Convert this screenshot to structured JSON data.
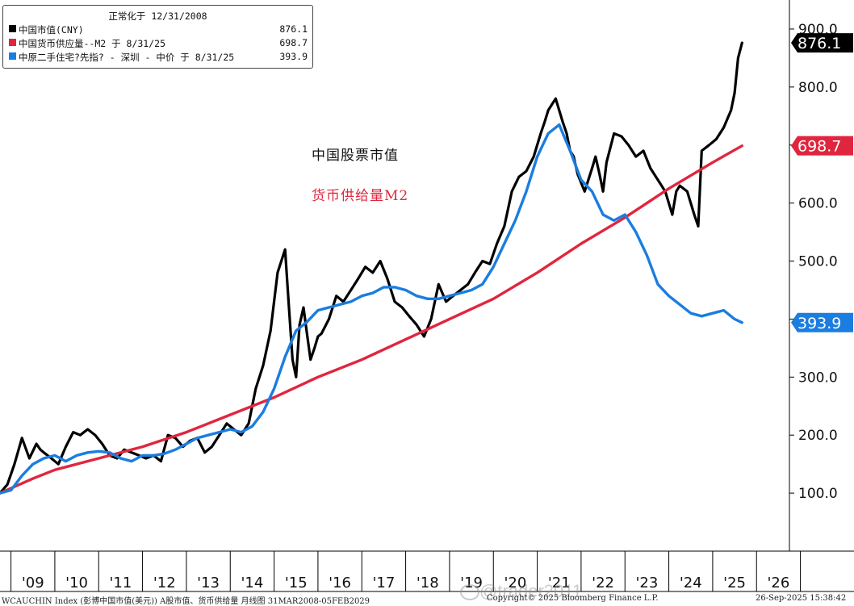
{
  "legend": {
    "title": "正常化于 12/31/2008",
    "items": [
      {
        "label": "中国市值(CNY)",
        "value": "876.1",
        "color": "#000000"
      },
      {
        "label": "中国货币供应量--M2 于 8/31/25",
        "value": "698.7",
        "color": "#e0263e"
      },
      {
        "label": "中原二手住宅?先指? - 深圳 - 中价 于 8/31/25",
        "value": "393.9",
        "color": "#1a7de0"
      }
    ]
  },
  "annotations": {
    "stocks": "中国股票市值",
    "m2": "货币供给量M2"
  },
  "footer": {
    "left": "WCAUCHIN Index (彭博中国市值(美元)) A股市值、货币供给量  月线图 31MAR2008-05FEB2029",
    "center": "Copyright© 2025 Bloomberg Finance L.P.",
    "right": "26-Sep-2025 15:38:42"
  },
  "watermark": "@trader2011",
  "chart_data": {
    "type": "line",
    "title": "",
    "xlabel": "",
    "ylabel": "",
    "xlim": [
      2008.75,
      2026.75
    ],
    "ylim": [
      0,
      950
    ],
    "yticks": [
      100,
      200,
      300,
      400,
      500,
      600,
      700,
      800,
      900
    ],
    "ytick_labels": [
      "100.0",
      "200.0",
      "300.0",
      "400.0",
      "500.0",
      "600.0",
      "700.0",
      "800.0",
      "900.0"
    ],
    "xticks": [
      2009,
      2010,
      2011,
      2012,
      2013,
      2014,
      2015,
      2016,
      2017,
      2018,
      2019,
      2020,
      2021,
      2022,
      2023,
      2024,
      2025,
      2026
    ],
    "xtick_labels": [
      "'09",
      "'10",
      "'11",
      "'12",
      "'13",
      "'14",
      "'15",
      "'16",
      "'17",
      "'18",
      "'19",
      "'20",
      "'21",
      "'22",
      "'23",
      "'24",
      "'25",
      "'26"
    ],
    "series": [
      {
        "name": "中国市值(CNY)",
        "color": "#000000",
        "end_label": "876.1",
        "x": [
          2008.75,
          2008.92,
          2009.08,
          2009.25,
          2009.42,
          2009.58,
          2009.67,
          2009.75,
          2009.92,
          2010.08,
          2010.25,
          2010.42,
          2010.58,
          2010.75,
          2010.92,
          2011.08,
          2011.25,
          2011.42,
          2011.58,
          2011.75,
          2011.92,
          2012.08,
          2012.25,
          2012.42,
          2012.58,
          2012.75,
          2012.92,
          2013.08,
          2013.25,
          2013.42,
          2013.58,
          2013.75,
          2013.92,
          2014.08,
          2014.25,
          2014.42,
          2014.58,
          2014.75,
          2014.92,
          2015.08,
          2015.25,
          2015.33,
          2015.42,
          2015.5,
          2015.58,
          2015.67,
          2015.75,
          2015.83,
          2015.92,
          2016.0,
          2016.08,
          2016.25,
          2016.42,
          2016.58,
          2016.75,
          2016.92,
          2017.08,
          2017.25,
          2017.42,
          2017.58,
          2017.75,
          2017.92,
          2018.08,
          2018.25,
          2018.42,
          2018.58,
          2018.75,
          2018.92,
          2019.08,
          2019.25,
          2019.42,
          2019.58,
          2019.75,
          2019.92,
          2020.08,
          2020.25,
          2020.42,
          2020.58,
          2020.75,
          2020.92,
          2021.08,
          2021.17,
          2021.25,
          2021.42,
          2021.58,
          2021.67,
          2021.75,
          2021.83,
          2021.92,
          2022.08,
          2022.25,
          2022.33,
          2022.42,
          2022.5,
          2022.58,
          2022.75,
          2022.92,
          2023.08,
          2023.25,
          2023.42,
          2023.58,
          2023.75,
          2023.92,
          2024.08,
          2024.17,
          2024.25,
          2024.42,
          2024.58,
          2024.67,
          2024.75,
          2024.92,
          2025.08,
          2025.25,
          2025.42,
          2025.5,
          2025.58,
          2025.67
        ],
        "y": [
          100,
          115,
          150,
          195,
          160,
          185,
          175,
          170,
          160,
          150,
          180,
          205,
          200,
          210,
          200,
          185,
          165,
          160,
          175,
          170,
          165,
          160,
          165,
          155,
          200,
          195,
          180,
          190,
          195,
          170,
          180,
          200,
          220,
          210,
          200,
          220,
          280,
          320,
          380,
          480,
          520,
          430,
          330,
          300,
          390,
          420,
          375,
          330,
          350,
          370,
          375,
          400,
          440,
          430,
          450,
          470,
          490,
          480,
          500,
          470,
          430,
          420,
          405,
          390,
          370,
          400,
          460,
          430,
          440,
          450,
          460,
          480,
          500,
          495,
          530,
          560,
          620,
          645,
          655,
          680,
          720,
          740,
          760,
          780,
          740,
          720,
          690,
          680,
          650,
          620,
          660,
          680,
          650,
          620,
          670,
          720,
          715,
          700,
          680,
          690,
          660,
          640,
          620,
          580,
          620,
          630,
          620,
          580,
          560,
          690,
          700,
          710,
          730,
          760,
          790,
          850,
          876.1
        ]
      },
      {
        "name": "中国货币供应量--M2 于 8/31/25",
        "color": "#e0263e",
        "end_label": "698.7",
        "x": [
          2008.75,
          2009.5,
          2010,
          2011,
          2012,
          2013,
          2014,
          2015,
          2016,
          2017,
          2018,
          2019,
          2020,
          2021,
          2022,
          2023,
          2024,
          2025,
          2025.67
        ],
        "y": [
          100,
          125,
          140,
          160,
          180,
          205,
          235,
          265,
          300,
          330,
          365,
          400,
          435,
          480,
          530,
          575,
          625,
          670,
          698.7
        ]
      },
      {
        "name": "中原二手住宅?先指? - 深圳 - 中价 于 8/31/25",
        "color": "#1a7de0",
        "end_label": "393.9",
        "x": [
          2008.75,
          2009.0,
          2009.25,
          2009.5,
          2009.75,
          2010.0,
          2010.25,
          2010.5,
          2010.75,
          2011.0,
          2011.25,
          2011.5,
          2011.75,
          2012.0,
          2012.25,
          2012.5,
          2012.75,
          2013.0,
          2013.25,
          2013.5,
          2013.75,
          2014.0,
          2014.25,
          2014.5,
          2014.75,
          2015.0,
          2015.25,
          2015.5,
          2015.75,
          2016.0,
          2016.25,
          2016.5,
          2016.75,
          2017.0,
          2017.25,
          2017.5,
          2017.75,
          2018.0,
          2018.25,
          2018.5,
          2018.75,
          2019.0,
          2019.25,
          2019.5,
          2019.75,
          2020.0,
          2020.25,
          2020.5,
          2020.75,
          2021.0,
          2021.25,
          2021.5,
          2021.75,
          2022.0,
          2022.25,
          2022.5,
          2022.75,
          2023.0,
          2023.25,
          2023.5,
          2023.75,
          2024.0,
          2024.25,
          2024.5,
          2024.75,
          2025.0,
          2025.25,
          2025.5,
          2025.67
        ],
        "y": [
          100,
          105,
          130,
          150,
          160,
          165,
          155,
          165,
          170,
          172,
          170,
          160,
          155,
          165,
          165,
          168,
          175,
          185,
          195,
          200,
          205,
          210,
          205,
          215,
          240,
          280,
          335,
          380,
          395,
          415,
          420,
          425,
          430,
          440,
          445,
          455,
          455,
          450,
          440,
          435,
          435,
          440,
          445,
          450,
          460,
          490,
          530,
          570,
          620,
          680,
          720,
          735,
          690,
          640,
          620,
          580,
          570,
          580,
          550,
          510,
          460,
          440,
          425,
          410,
          405,
          410,
          415,
          400,
          393.9
        ]
      }
    ]
  }
}
